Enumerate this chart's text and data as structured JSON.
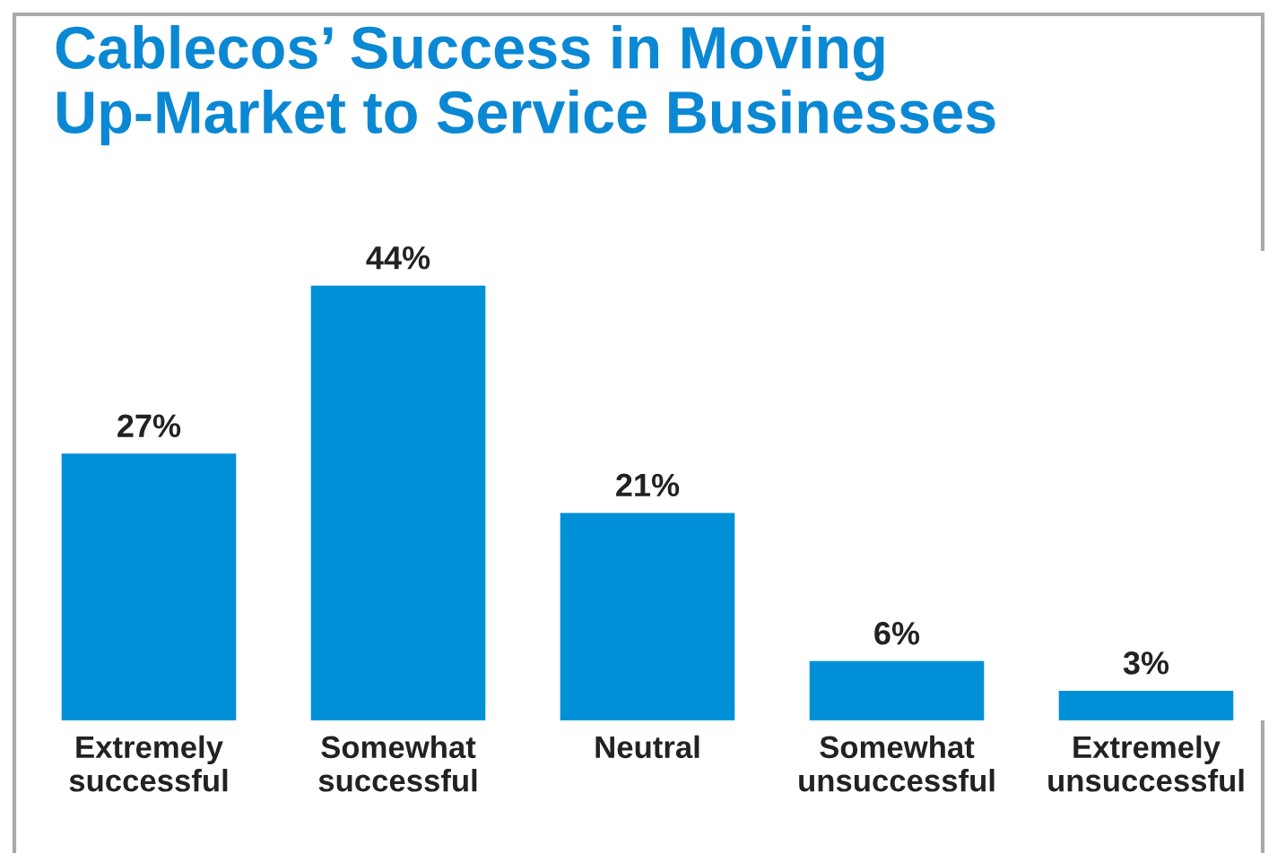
{
  "chart_data": {
    "type": "bar",
    "title": "Cablecos’ Success in Moving\nUp-Market to Service Businesses",
    "categories": [
      "Extremely\nsuccessful",
      "Somewhat\nsuccessful",
      "Neutral",
      "Somewhat\nunsuccessful",
      "Extremely\nunsuccessful"
    ],
    "values": [
      27,
      44,
      21,
      6,
      3
    ],
    "value_labels": [
      "27%",
      "44%",
      "21%",
      "6%",
      "3%"
    ],
    "color": "#0090d8",
    "grid": false,
    "legend": false
  }
}
